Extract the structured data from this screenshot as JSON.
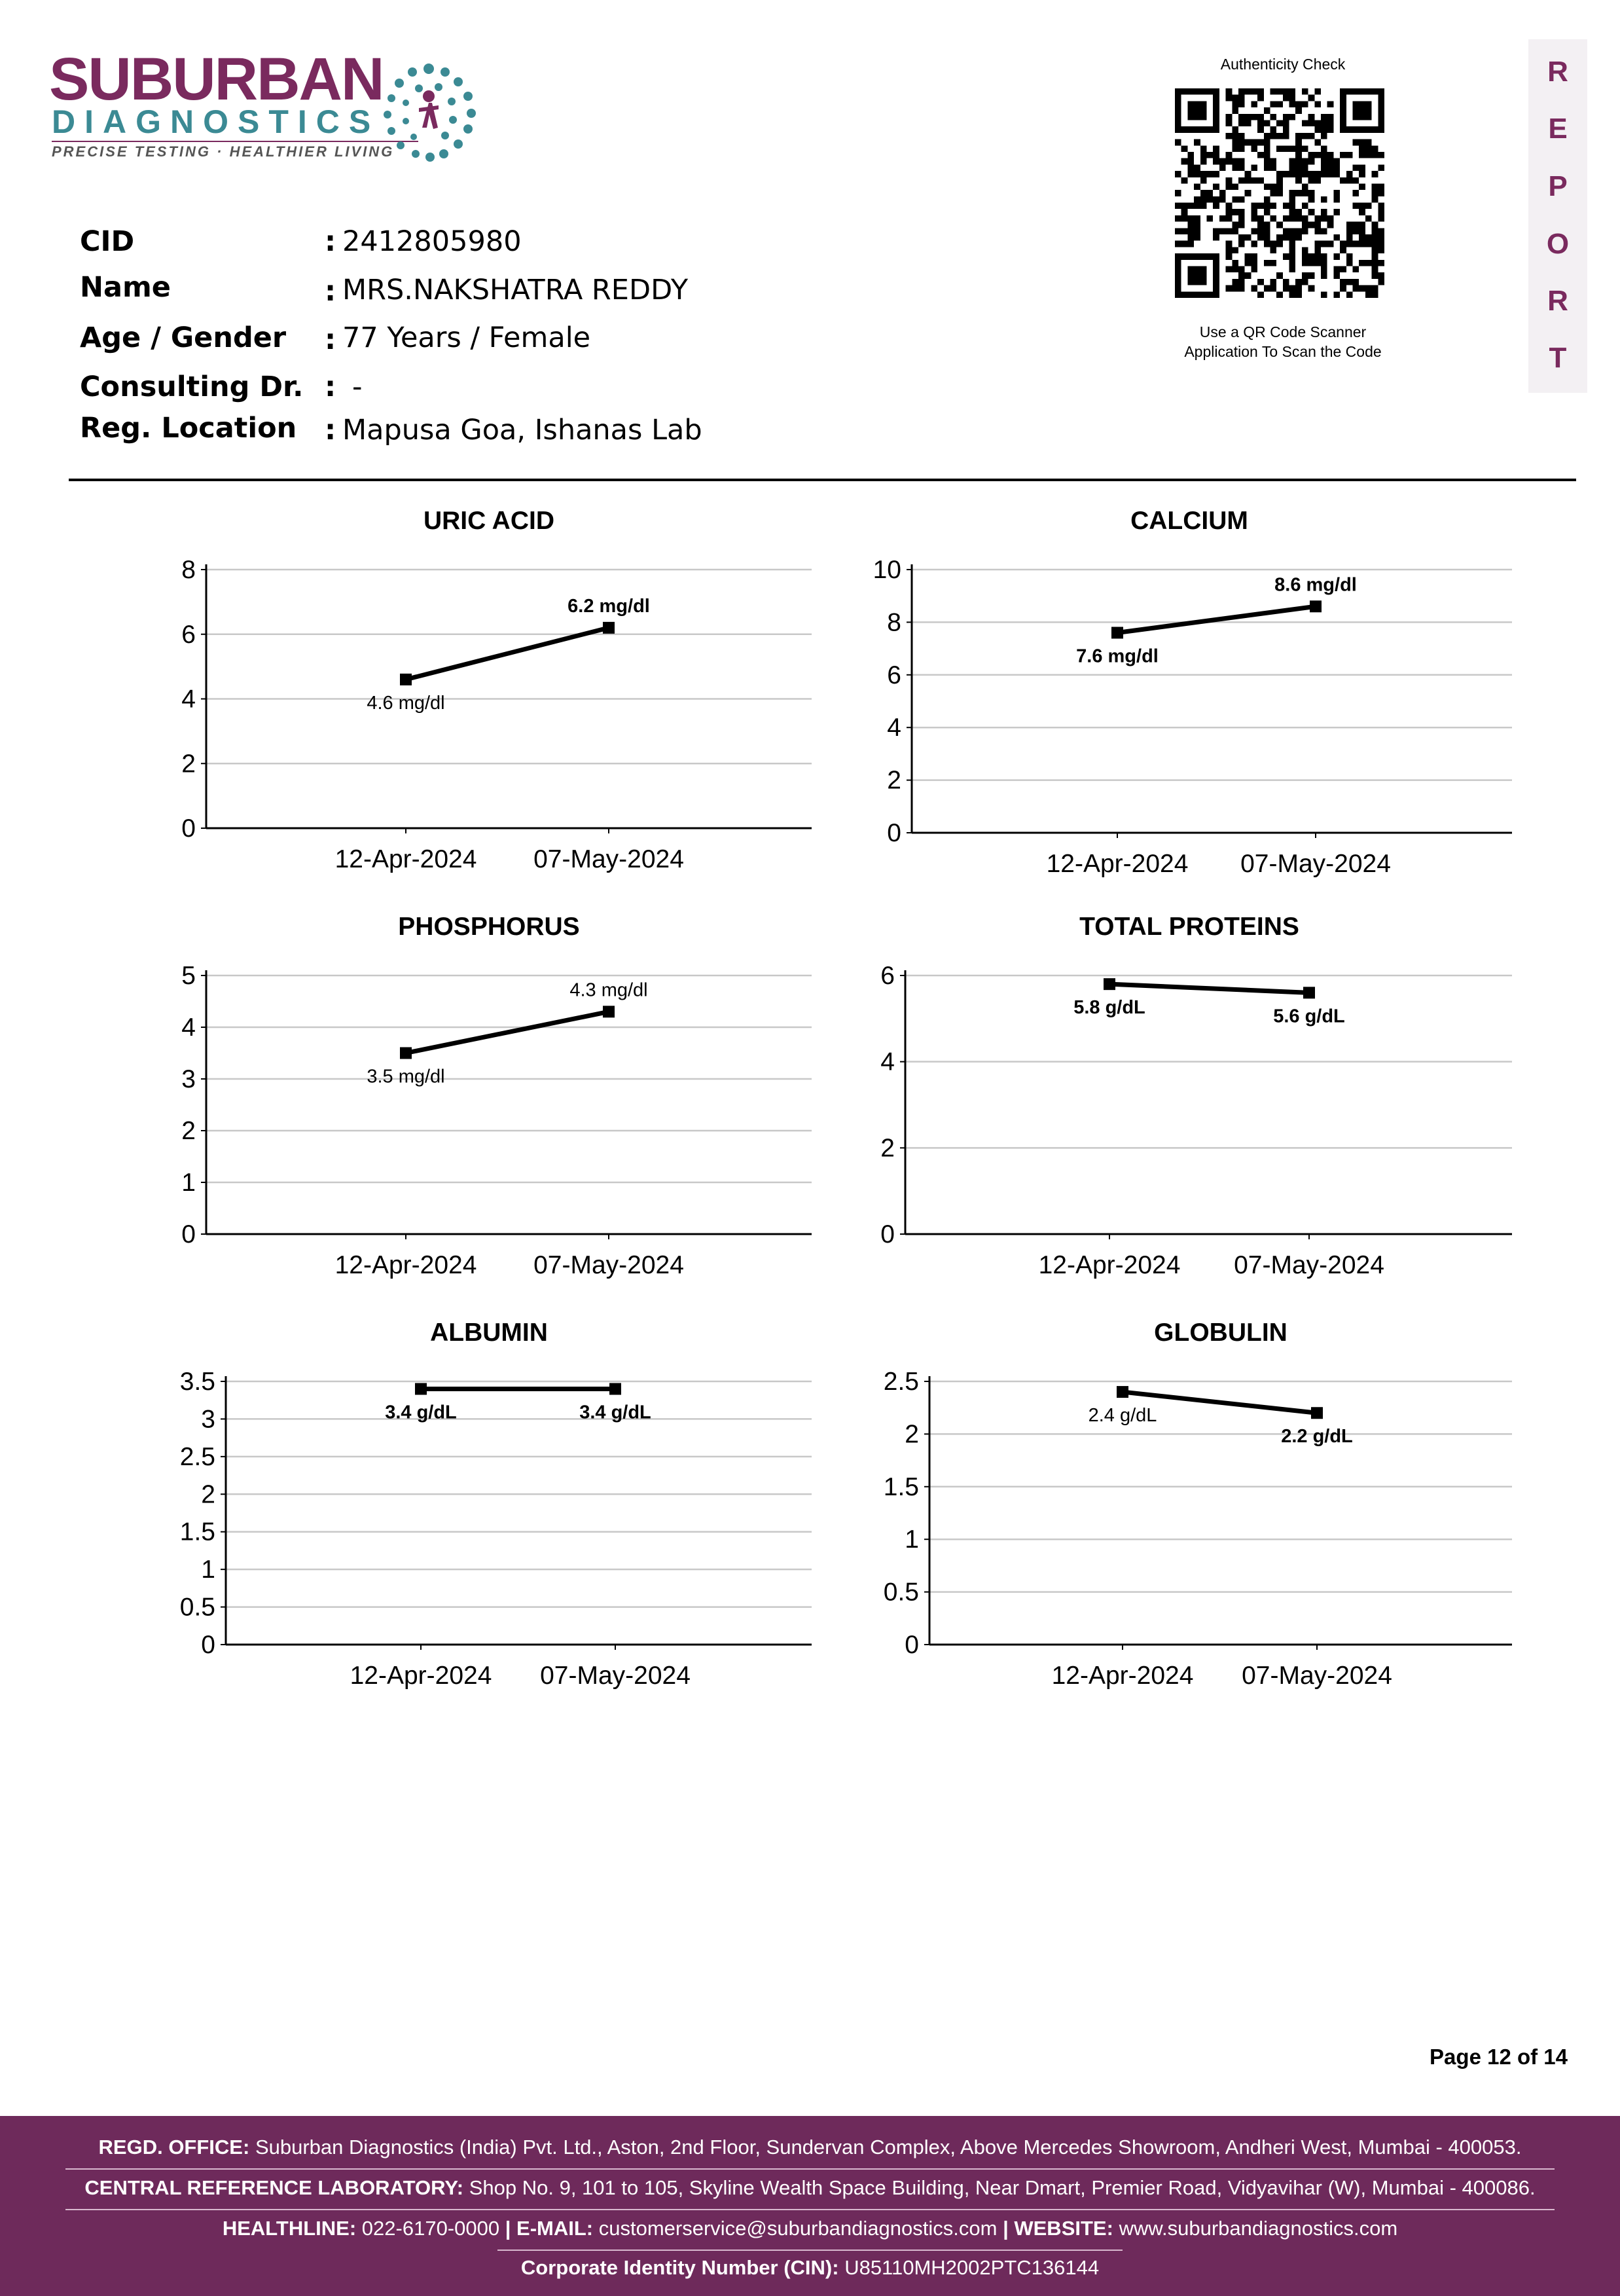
{
  "logo": {
    "word1": "SUBURBAN",
    "word2": "DIAGNOSTICS",
    "tagline": "PRECISE TESTING · HEALTHIER LIVING"
  },
  "qr": {
    "title": "Authenticity Check",
    "caption_line1": "Use a QR Code Scanner",
    "caption_line2": "Application To Scan the Code"
  },
  "report_letters": [
    "R",
    "E",
    "P",
    "O",
    "R",
    "T"
  ],
  "patient": [
    {
      "label": "CID",
      "value": "2412805980"
    },
    {
      "label": "Name",
      "value": "MRS.NAKSHATRA REDDY"
    },
    {
      "label": "Age / Gender",
      "value": "77 Years / Female"
    },
    {
      "label": "Consulting Dr.",
      "value": "-"
    },
    {
      "label": "Reg. Location",
      "value": "Mapusa Goa, Ishanas Lab"
    }
  ],
  "chart_data": [
    {
      "type": "line",
      "title": "URIC ACID",
      "categories": [
        "12-Apr-2024",
        "07-May-2024"
      ],
      "values": [
        4.6,
        6.2
      ],
      "data_labels": [
        "4.6 mg/dl",
        "6.2 mg/dl"
      ],
      "ylim": [
        0,
        8
      ],
      "yticks": [
        "0",
        "2",
        "4",
        "6",
        "8"
      ],
      "grid": true
    },
    {
      "type": "line",
      "title": "CALCIUM",
      "categories": [
        "12-Apr-2024",
        "07-May-2024"
      ],
      "values": [
        7.6,
        8.6
      ],
      "data_labels": [
        "7.6 mg/dl",
        "8.6 mg/dl"
      ],
      "ylim": [
        0,
        10
      ],
      "yticks": [
        "0",
        "2",
        "4",
        "6",
        "8",
        "10"
      ],
      "grid": true
    },
    {
      "type": "line",
      "title": "PHOSPHORUS",
      "categories": [
        "12-Apr-2024",
        "07-May-2024"
      ],
      "values": [
        3.5,
        4.3
      ],
      "data_labels": [
        "3.5 mg/dl",
        "4.3 mg/dl"
      ],
      "ylim": [
        0,
        5
      ],
      "yticks": [
        "0",
        "1",
        "2",
        "3",
        "4",
        "5"
      ],
      "grid": true
    },
    {
      "type": "line",
      "title": "TOTAL PROTEINS",
      "categories": [
        "12-Apr-2024",
        "07-May-2024"
      ],
      "values": [
        5.8,
        5.6
      ],
      "data_labels": [
        "5.8 g/dL",
        "5.6 g/dL"
      ],
      "ylim": [
        0,
        6
      ],
      "yticks": [
        "0",
        "2",
        "4",
        "6"
      ],
      "grid": true
    },
    {
      "type": "line",
      "title": "ALBUMIN",
      "categories": [
        "12-Apr-2024",
        "07-May-2024"
      ],
      "values": [
        3.4,
        3.4
      ],
      "data_labels": [
        "3.4 g/dL",
        "3.4 g/dL"
      ],
      "ylim": [
        0,
        3.5
      ],
      "yticks": [
        "0",
        "0.5",
        "1",
        "1.5",
        "2",
        "2.5",
        "3",
        "3.5"
      ],
      "grid": true
    },
    {
      "type": "line",
      "title": "GLOBULIN",
      "categories": [
        "12-Apr-2024",
        "07-May-2024"
      ],
      "values": [
        2.4,
        2.2
      ],
      "data_labels": [
        "2.4 g/dL",
        "2.2 g/dL"
      ],
      "ylim": [
        0,
        2.5
      ],
      "yticks": [
        "0",
        "0.5",
        "1",
        "1.5",
        "2",
        "2.5"
      ],
      "grid": true
    }
  ],
  "page_number": "Page 12 of 14",
  "footer": {
    "regd_label": "REGD. OFFICE:",
    "regd_text": "Suburban Diagnostics (India) Pvt. Ltd., Aston, 2nd Floor, Sundervan Complex, Above Mercedes Showroom, Andheri West, Mumbai - 400053.",
    "lab_label": "CENTRAL REFERENCE LABORATORY:",
    "lab_text": "Shop No. 9, 101 to 105, Skyline Wealth Space Building, Near Dmart, Premier Road, Vidyavihar (W), Mumbai - 400086.",
    "helpline_label": "HEALTHLINE:",
    "helpline_text": "022-6170-0000",
    "email_label": "E-MAIL:",
    "email_text": "customerservice@suburbandiagnostics.com",
    "website_label": "WEBSITE:",
    "website_text": "www.suburbandiagnostics.com",
    "cin_label": "Corporate Identity Number (CIN):",
    "cin_text": "U85110MH2002PTC136144"
  }
}
